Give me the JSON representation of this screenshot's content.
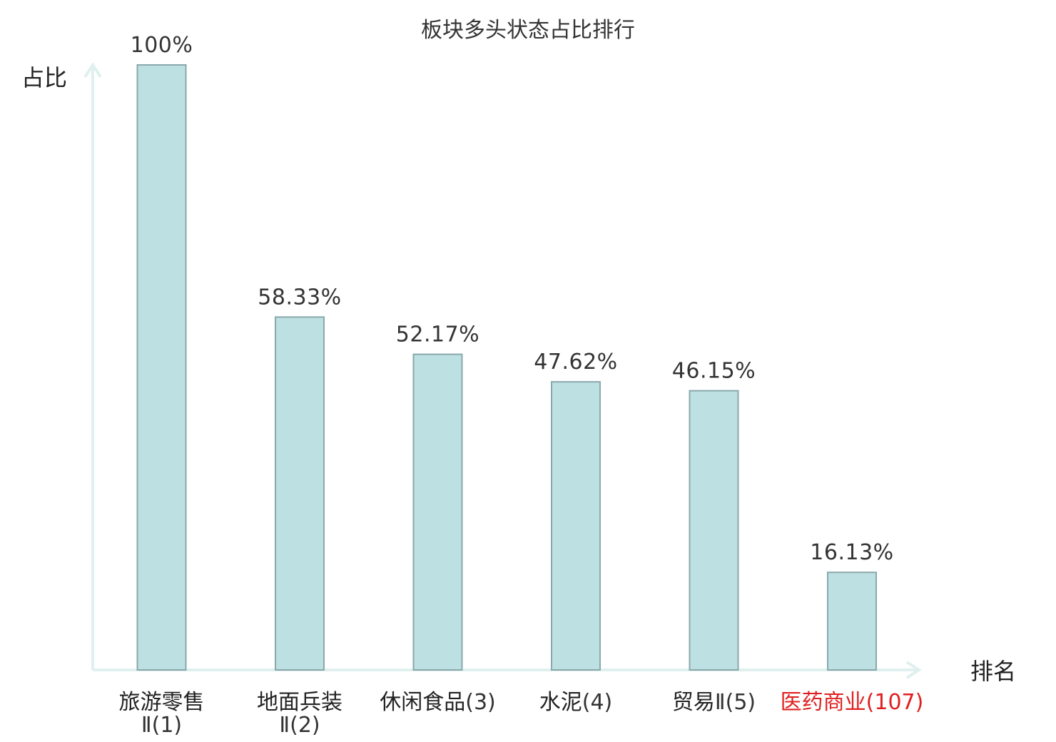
{
  "chart_data": {
    "type": "bar",
    "title": "板块多头状态占比排行",
    "ylabel": "占比",
    "xlabel": "排名",
    "ylim": [
      0,
      100
    ],
    "grid": false,
    "categories": [
      {
        "name": "旅游零售",
        "rank": "Ⅱ(1)",
        "wrap": true,
        "highlight": false
      },
      {
        "name": "地面兵装",
        "rank": "Ⅱ(2)",
        "wrap": true,
        "highlight": false
      },
      {
        "name": "休闲食品",
        "rank": "(3)",
        "wrap": false,
        "highlight": false
      },
      {
        "name": "水泥",
        "rank": "(4)",
        "wrap": false,
        "highlight": false
      },
      {
        "name": "贸易",
        "rank": "Ⅱ(5)",
        "wrap": false,
        "highlight": false
      },
      {
        "name": "医药商业",
        "rank": "(107)",
        "wrap": false,
        "highlight": true
      }
    ],
    "values": [
      100,
      58.33,
      52.17,
      47.62,
      46.15,
      16.13
    ],
    "value_labels": [
      "100%",
      "58.33%",
      "52.17%",
      "47.62%",
      "46.15%",
      "16.13%"
    ],
    "colors": {
      "bar_fill": "#bde0e2",
      "bar_stroke": "#8aa8ac",
      "axis": "#dff0ee",
      "highlight_text": "#e02020"
    }
  }
}
